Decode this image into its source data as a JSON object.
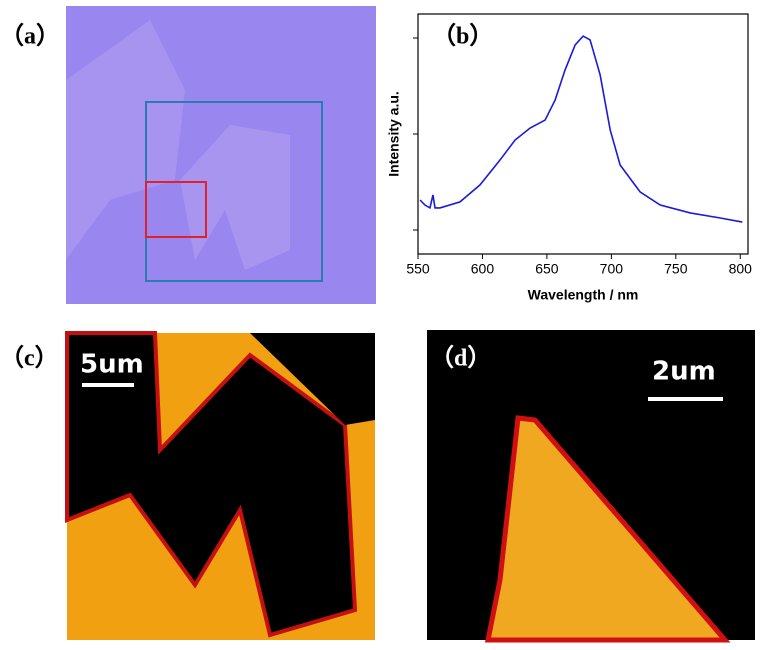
{
  "panel_labels": [
    "（a）",
    "（b）",
    "（c）",
    "（d）"
  ],
  "scale_bars": [
    "5um",
    "2um"
  ],
  "chart_data": {
    "type": "line",
    "xlabel": "Wavelength / nm",
    "ylabel": "Intensity a.u.",
    "x": [
      551.6,
      555.4,
      559.3,
      561.6,
      563.2,
      567.1,
      582.6,
      598.1,
      613.7,
      625.3,
      637,
      648.6,
      656.4,
      664.1,
      671.9,
      678.1,
      683.5,
      691.3,
      699.1,
      706.8,
      722.4,
      737.9,
      761.2,
      784.5,
      801.6
    ],
    "values": [
      0.225,
      0.204,
      0.192,
      0.246,
      0.192,
      0.192,
      0.217,
      0.288,
      0.392,
      0.475,
      0.525,
      0.558,
      0.642,
      0.767,
      0.871,
      0.908,
      0.892,
      0.746,
      0.517,
      0.371,
      0.258,
      0.204,
      0.171,
      0.15,
      0.133
    ],
    "color": "#1a1adc",
    "xlim": [
      550,
      806
    ],
    "xticks": [
      550,
      600,
      650,
      700,
      750,
      800
    ],
    "ylim": [
      0,
      1
    ],
    "yticks": [
      0.1,
      0.5,
      0.9
    ]
  }
}
